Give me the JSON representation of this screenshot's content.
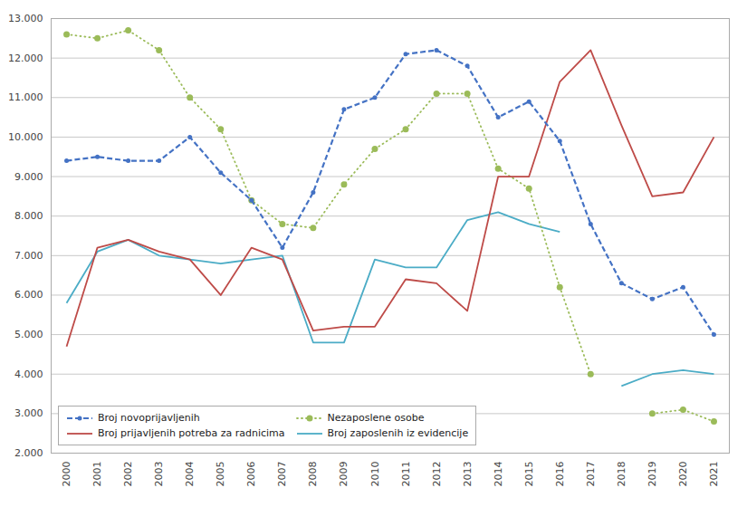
{
  "chart_data": {
    "type": "line",
    "x": [
      2000,
      2001,
      2002,
      2003,
      2004,
      2005,
      2006,
      2007,
      2008,
      2009,
      2010,
      2011,
      2012,
      2013,
      2014,
      2015,
      2016,
      2017,
      2018,
      2019,
      2020,
      2021
    ],
    "xlim": [
      1999.5,
      2021.5
    ],
    "xticks": [
      2000,
      2001,
      2002,
      2003,
      2004,
      2005,
      2006,
      2007,
      2008,
      2009,
      2010,
      2011,
      2012,
      2013,
      2014,
      2015,
      2016,
      2017,
      2018,
      2019,
      2020,
      2021
    ],
    "ylim": [
      2000,
      13000
    ],
    "yticks": [
      {
        "value": 2000,
        "label": "2.000"
      },
      {
        "value": 3000,
        "label": "3.000"
      },
      {
        "value": 4000,
        "label": "4.000"
      },
      {
        "value": 5000,
        "label": "5.000"
      },
      {
        "value": 6000,
        "label": "6.000"
      },
      {
        "value": 7000,
        "label": "7.000"
      },
      {
        "value": 8000,
        "label": "8.000"
      },
      {
        "value": 9000,
        "label": "9.000"
      },
      {
        "value": 10000,
        "label": "10.000"
      },
      {
        "value": 11000,
        "label": "11.000"
      },
      {
        "value": 12000,
        "label": "12.000"
      },
      {
        "value": 13000,
        "label": "13.000"
      }
    ],
    "grid": "y",
    "legend": "lower left",
    "series": [
      {
        "name": "Broj novoprijavljenih",
        "color": "#4472c4",
        "line_style": "dashed",
        "marker": "circle",
        "values": [
          9400,
          9500,
          9400,
          9400,
          10000,
          9100,
          8400,
          7200,
          8600,
          10700,
          11000,
          12100,
          12200,
          11800,
          10500,
          10900,
          9900,
          7800,
          6300,
          5900,
          6200,
          5000
        ]
      },
      {
        "name": "Broj prijavljenih potreba za radnicima",
        "color": "#be4b48",
        "line_style": "solid",
        "values": [
          4700,
          7200,
          7400,
          7100,
          6900,
          6000,
          7200,
          6900,
          5100,
          5200,
          5200,
          6400,
          6300,
          5600,
          9000,
          9000,
          11400,
          12200,
          10300,
          8500,
          8600,
          10000
        ]
      },
      {
        "name": "Nezaposlene osobe",
        "color": "#9bbb59",
        "line_style": "dotted",
        "marker": "circle",
        "values": [
          12600,
          12500,
          12700,
          12200,
          11000,
          10200,
          8400,
          7800,
          7700,
          8800,
          9700,
          10200,
          11100,
          11100,
          9200,
          8700,
          6200,
          4000,
          null,
          3000,
          3100,
          2800
        ]
      },
      {
        "name": "Broj zaposlenih iz evidencije",
        "color": "#4bacc6",
        "line_style": "solid",
        "values": [
          5800,
          7100,
          7400,
          7000,
          6900,
          6800,
          6900,
          7000,
          4800,
          4800,
          6900,
          6700,
          6700,
          7900,
          8100,
          7800,
          7600,
          null,
          3700,
          4000,
          4100,
          4000
        ]
      }
    ]
  }
}
